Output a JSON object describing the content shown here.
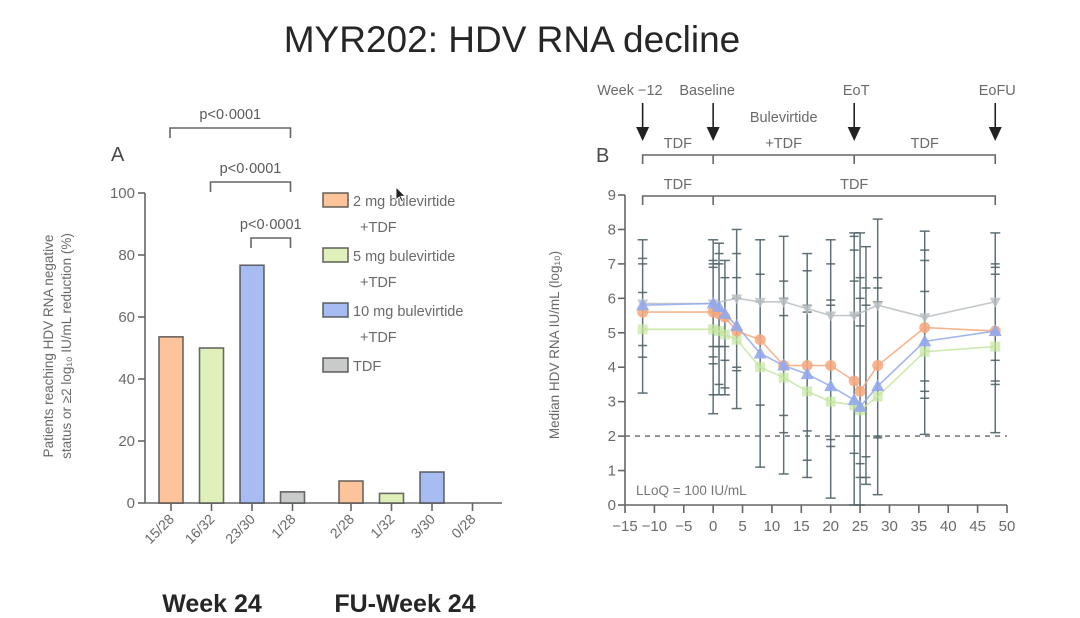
{
  "title": "MYR202: HDV RNA decline",
  "chart_data": [
    {
      "panel": "A",
      "type": "bar",
      "title": "",
      "xlabel": "",
      "ylabel_lines": [
        "Patients reaching HDV RNA negative",
        "status or ≥2 log₁₀ IU/mL reduction (%)"
      ],
      "ylim": [
        0,
        100
      ],
      "yticks": [
        0,
        20,
        40,
        60,
        80,
        100
      ],
      "groups": [
        "Week 24",
        "FU-Week 24"
      ],
      "legend_position": "right",
      "series": [
        {
          "name": "2 mg bulevirtide + TDF",
          "legend_lines": [
            "2 mg bulevirtide",
            "+TDF"
          ],
          "color": "#FDC49C",
          "values": [
            53.6,
            7.1
          ],
          "n_labels": [
            "15/28",
            "2/28"
          ]
        },
        {
          "name": "5 mg bulevirtide + TDF",
          "legend_lines": [
            "5 mg bulevirtide",
            "+TDF"
          ],
          "color": "#DFF0BB",
          "values": [
            50.0,
            3.1
          ],
          "n_labels": [
            "16/32",
            "1/32"
          ]
        },
        {
          "name": "10 mg bulevirtide + TDF",
          "legend_lines": [
            "10 mg bulevirtide",
            "+TDF"
          ],
          "color": "#A7BCF0",
          "values": [
            76.7,
            10.0
          ],
          "n_labels": [
            "23/30",
            "3/30"
          ]
        },
        {
          "name": "TDF",
          "legend_lines": [
            "TDF"
          ],
          "color": "#C9CBCB",
          "values": [
            3.6,
            0.0
          ],
          "n_labels": [
            "1/28",
            "0/28"
          ]
        }
      ],
      "comparisons": [
        {
          "label": "p<0·0001",
          "group": "Week 24",
          "from_series": 0,
          "to_series": 3
        },
        {
          "label": "p<0·0001",
          "group": "Week 24",
          "from_series": 1,
          "to_series": 3
        },
        {
          "label": "p<0·0001",
          "group": "Week 24",
          "from_series": 2,
          "to_series": 3
        }
      ]
    },
    {
      "panel": "B",
      "type": "line",
      "title": "",
      "xlabel": "",
      "ylabel": "Median HDV RNA IU/mL (log₁₀)",
      "xlim": [
        -15,
        50
      ],
      "xticks": [
        -15,
        -10,
        -5,
        0,
        5,
        10,
        15,
        20,
        25,
        30,
        35,
        40,
        45,
        50
      ],
      "xtick_labels": [
        "−15",
        "−10",
        "−5",
        "0",
        "5",
        "10",
        "15",
        "20",
        "25",
        "30",
        "35",
        "40",
        "45",
        "50"
      ],
      "ylim": [
        0,
        9
      ],
      "yticks": [
        0,
        1,
        2,
        3,
        4,
        5,
        6,
        7,
        8,
        9
      ],
      "grid": false,
      "reference_line": {
        "y": 2,
        "style": "dashed",
        "label": "LLoQ = 100 IU/mL"
      },
      "timeline_markers": [
        {
          "label": "Week −12",
          "x": -12
        },
        {
          "label": "Baseline",
          "x": 0
        },
        {
          "label": "EoT",
          "x": 24
        },
        {
          "label": "EoFU",
          "x": 48
        }
      ],
      "treatment_rows": [
        [
          {
            "label_lines": [
              "TDF"
            ],
            "from": -12,
            "to": 0
          },
          {
            "label_lines": [
              "Bulevirtide",
              "+TDF"
            ],
            "from": 0,
            "to": 24
          },
          {
            "label_lines": [
              "TDF"
            ],
            "from": 24,
            "to": 48
          }
        ],
        [
          {
            "label_lines": [
              "TDF"
            ],
            "from": -12,
            "to": 0
          },
          {
            "label_lines": [
              "TDF"
            ],
            "from": 0,
            "to": 48
          }
        ]
      ],
      "series": [
        {
          "name": "TDF",
          "marker": "triangle-down",
          "color": "#B8BEC2",
          "x": [
            -12,
            0,
            4,
            8,
            12,
            16,
            20,
            24,
            28,
            36,
            48
          ],
          "y": [
            5.85,
            5.85,
            6.0,
            5.9,
            5.9,
            5.7,
            5.5,
            5.5,
            5.8,
            5.45,
            5.9
          ]
        },
        {
          "name": "5 mg bulevirtide + TDF",
          "marker": "square",
          "color": "#C5E5A0",
          "x": [
            -12,
            0,
            1,
            2,
            4,
            8,
            12,
            16,
            20,
            24,
            25,
            28,
            36,
            48
          ],
          "y": [
            5.1,
            5.1,
            5.05,
            4.95,
            4.8,
            4.0,
            3.7,
            3.3,
            3.0,
            2.9,
            2.75,
            3.15,
            4.45,
            4.6
          ]
        },
        {
          "name": "2 mg bulevirtide + TDF",
          "marker": "circle",
          "color": "#F6A77B",
          "x": [
            -12,
            0,
            1,
            2,
            4,
            8,
            12,
            16,
            20,
            24,
            25,
            28,
            36,
            48
          ],
          "y": [
            5.6,
            5.6,
            5.55,
            5.45,
            5.05,
            4.8,
            4.05,
            4.05,
            4.05,
            3.6,
            3.3,
            4.05,
            5.15,
            5.05
          ]
        },
        {
          "name": "10 mg bulevirtide + TDF",
          "marker": "triangle-up",
          "color": "#93A9EC",
          "x": [
            -12,
            0,
            1,
            2,
            4,
            8,
            12,
            16,
            20,
            24,
            25,
            28,
            36,
            48
          ],
          "y": [
            5.8,
            5.85,
            5.75,
            5.55,
            5.2,
            4.4,
            4.05,
            3.8,
            3.45,
            3.05,
            2.85,
            3.45,
            4.75,
            5.05
          ]
        }
      ],
      "error_bars": [
        {
          "x": -12,
          "low": 3.25,
          "high": 7.7,
          "ticks": [
            7.16,
            7.0,
            6.17,
            4.63,
            4.29
          ]
        },
        {
          "x": 0,
          "low": 2.65,
          "high": 7.7,
          "ticks": [
            7.1,
            7.0,
            6.9,
            4.6,
            4.3,
            4.1,
            3.2
          ]
        },
        {
          "x": 1,
          "low": 3.2,
          "high": 7.6,
          "ticks": [
            7.3,
            7.0,
            4.6,
            3.5
          ]
        },
        {
          "x": 2,
          "low": 3.2,
          "high": 7.1,
          "ticks": [
            6.6,
            4.6,
            4.2,
            3.4
          ]
        },
        {
          "x": 4,
          "low": 2.8,
          "high": 8.0,
          "ticks": [
            7.3,
            6.6,
            6.0,
            4.0,
            3.9
          ]
        },
        {
          "x": 8,
          "low": 1.1,
          "high": 7.7,
          "ticks": [
            6.7,
            5.9,
            2.9
          ]
        },
        {
          "x": 12,
          "low": 0.9,
          "high": 7.8,
          "ticks": [
            6.5,
            6.0,
            5.5,
            2.6,
            2.1
          ]
        },
        {
          "x": 16,
          "low": 0.8,
          "high": 7.3,
          "ticks": [
            6.8,
            5.8,
            5.6,
            2.15,
            1.3
          ]
        },
        {
          "x": 20,
          "low": 0.2,
          "high": 7.7,
          "ticks": [
            7.0,
            5.95,
            5.8,
            1.9,
            1.7
          ]
        },
        {
          "x": 24,
          "low": 0.0,
          "high": 7.9,
          "ticks": [
            7.8,
            7.4,
            6.5,
            5.5,
            2.0,
            1.5
          ]
        },
        {
          "x": 25,
          "low": 0.0,
          "high": 7.9,
          "ticks": [
            6.6,
            6.0,
            5.2,
            1.2,
            0.8
          ]
        },
        {
          "x": 26,
          "low": 0.6,
          "high": 7.5,
          "ticks": [
            6.3,
            5.8,
            1.4,
            0.8
          ]
        },
        {
          "x": 28,
          "low": 0.3,
          "high": 8.3,
          "ticks": [
            6.6,
            6.3,
            5.9,
            2.0,
            1.95
          ]
        },
        {
          "x": 36,
          "low": 2.05,
          "high": 7.95,
          "ticks": [
            7.4,
            7.1,
            6.2,
            3.6,
            3.3,
            3.1
          ]
        },
        {
          "x": 48,
          "low": 2.1,
          "high": 7.9,
          "ticks": [
            7.0,
            6.9,
            6.7,
            4.2,
            3.6,
            3.5
          ]
        }
      ]
    }
  ]
}
